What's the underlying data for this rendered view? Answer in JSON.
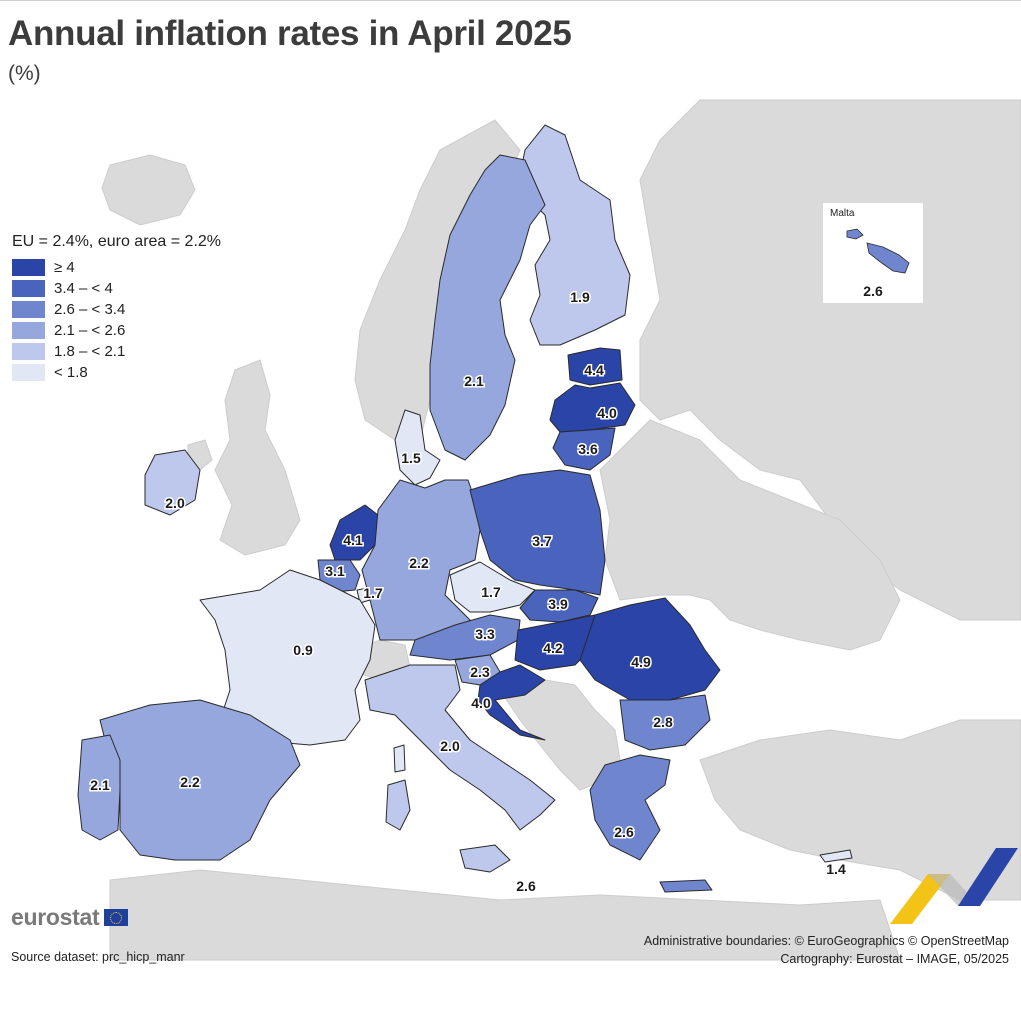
{
  "title": "Annual inflation rates in April 2025",
  "subtitle": "(%)",
  "legend": {
    "header": "EU = 2.4%, euro area = 2.2%",
    "items": [
      {
        "label": "≥ 4",
        "color": "#2b44a8"
      },
      {
        "label": "3.4 – < 4",
        "color": "#4a63bd"
      },
      {
        "label": "2.6 – < 3.4",
        "color": "#6f86cf"
      },
      {
        "label": "2.1 – < 2.6",
        "color": "#96a7dd"
      },
      {
        "label": "1.8 – < 2.1",
        "color": "#bdc8ec"
      },
      {
        "label": "< 1.8",
        "color": "#e2e7f6"
      }
    ]
  },
  "colors": {
    "non_eu_land": "#dadada",
    "sea": "#ffffff",
    "border": "#2a2a2a"
  },
  "values": {
    "finland": "1.9",
    "sweden": "2.1",
    "estonia": "4.4",
    "latvia": "4.0",
    "lithuania": "3.6",
    "denmark": "1.5",
    "ireland": "2.0",
    "netherlands": "4.1",
    "belgium": "3.1",
    "luxembourg": "1.7",
    "germany": "2.2",
    "poland": "3.7",
    "czechia": "1.7",
    "slovakia": "3.9",
    "austria": "3.3",
    "hungary": "4.2",
    "romania": "4.9",
    "slovenia": "2.3",
    "croatia": "4.0",
    "france": "0.9",
    "italy": "2.0",
    "bulgaria": "2.8",
    "greece": "2.6",
    "spain": "2.2",
    "portugal": "2.1",
    "cyprus": "1.4",
    "malta": "2.6",
    "sicily_label": "2.6"
  },
  "malta_inset": {
    "title": "Malta",
    "value": "2.6"
  },
  "logo": "eurostat",
  "source": "Source dataset: prc_hicp_manr",
  "credits": [
    "Administrative boundaries: © EuroGeographics © OpenStreetMap",
    "Cartography: Eurostat – IMAGE, 05/2025"
  ]
}
